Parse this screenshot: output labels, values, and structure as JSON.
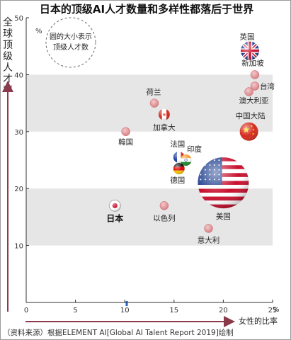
{
  "title": "日本的顶级AI人才数量和多样性都落后于世界",
  "source_note": "（资料来源）根据ELEMENT AI[Global AI Talent Report 2019]绘制",
  "legend_note": {
    "line1": "圆的大小表示",
    "line2": "顶级人才数"
  },
  "colors": {
    "accent": "#8a3a4a",
    "band": "#e6e6e6",
    "bubble": "#d9868b",
    "bubble_light": "#f0c2c4",
    "china_red": "#d52a1e",
    "japan_red": "#c8102e"
  },
  "chart_data": {
    "type": "scatter",
    "title": "日本的顶级AI人才数量和多样性都落后于世界",
    "xlabel": "女性的比率",
    "ylabel": "全球顶级人才率",
    "x_unit": "%",
    "y_unit": "%",
    "xlim": [
      0,
      25
    ],
    "ylim": [
      0,
      50
    ],
    "x_ticks": [
      "0",
      "5",
      "10",
      "15",
      "20",
      "25"
    ],
    "y_ticks": [
      "10",
      "20",
      "30",
      "40",
      "50"
    ],
    "x_marker": 10.2,
    "bands": [
      [
        10,
        20
      ],
      [
        30,
        40
      ]
    ],
    "points": [
      {
        "label": "英国",
        "x": 22.7,
        "y": 44.2,
        "size": "medium",
        "icon": "uk-flag"
      },
      {
        "label": "新加坡",
        "x": 23.2,
        "y": 40.0,
        "size": "small",
        "icon": "dot"
      },
      {
        "label": "台湾",
        "x": 23.2,
        "y": 38.0,
        "size": "small",
        "icon": "dot"
      },
      {
        "label": "澳大利亚",
        "x": 22.6,
        "y": 37.0,
        "size": "small",
        "icon": "dot"
      },
      {
        "label": "中国大陆",
        "x": 22.6,
        "y": 30.0,
        "size": "medium",
        "icon": "china-flag"
      },
      {
        "label": "荷兰",
        "x": 13.0,
        "y": 35.0,
        "size": "small",
        "icon": "dot"
      },
      {
        "label": "加拿大",
        "x": 14.0,
        "y": 33.0,
        "size": "small",
        "icon": "canada-flag"
      },
      {
        "label": "韓国",
        "x": 10.1,
        "y": 30.0,
        "size": "small",
        "icon": "dot"
      },
      {
        "label": "法国",
        "x": 15.5,
        "y": 25.5,
        "size": "small",
        "icon": "france-flag"
      },
      {
        "label": "印度",
        "x": 16.2,
        "y": 25.0,
        "size": "small",
        "icon": "india-flag"
      },
      {
        "label": "德国",
        "x": 15.5,
        "y": 23.5,
        "size": "small",
        "icon": "germany-flag"
      },
      {
        "label": "美国",
        "x": 20.0,
        "y": 21.0,
        "size": "large",
        "icon": "usa-flag"
      },
      {
        "label": "日本",
        "x": 9.0,
        "y": 17.0,
        "size": "small",
        "icon": "japan-flag"
      },
      {
        "label": "以色列",
        "x": 14.0,
        "y": 17.0,
        "size": "small",
        "icon": "dot"
      },
      {
        "label": "意大利",
        "x": 18.5,
        "y": 13.0,
        "size": "small",
        "icon": "dot"
      }
    ]
  }
}
